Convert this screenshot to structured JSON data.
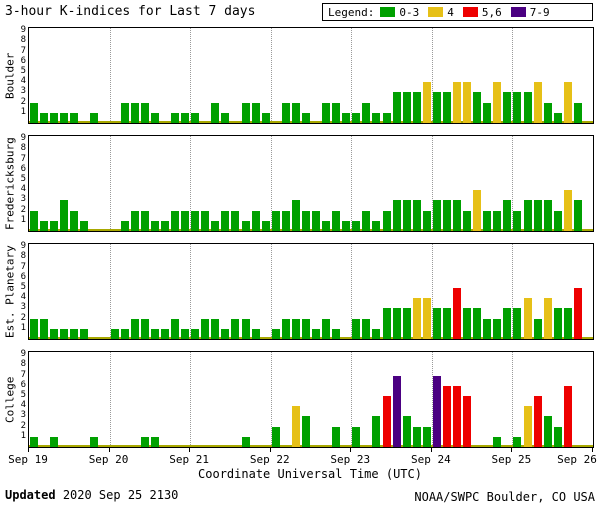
{
  "title": "3-hour K-indices for Last 7 days",
  "legend": {
    "label": "Legend:",
    "items": [
      {
        "label": "0-3",
        "color": "#00a000"
      },
      {
        "label": "4",
        "color": "#e6c017"
      },
      {
        "label": "5,6",
        "color": "#ee0000"
      },
      {
        "label": "7-9",
        "color": "#4b0082"
      }
    ]
  },
  "footer": {
    "updated_label": "Updated",
    "updated_value": "2020 Sep 25 2130",
    "credit": "NOAA/SWPC Boulder, CO USA"
  },
  "chart_data": {
    "type": "bar",
    "title": "3-hour K-indices for Last 7 days",
    "xlabel": "Coordinate Universal Time (UTC)",
    "x_tick_labels": [
      "Sep 19",
      "Sep 20",
      "Sep 21",
      "Sep 22",
      "Sep 23",
      "Sep 24",
      "Sep 25",
      "Sep 26"
    ],
    "y_ticks": [
      1,
      2,
      3,
      4,
      5,
      6,
      7,
      8,
      9
    ],
    "ylim": [
      0,
      9
    ],
    "days": 7,
    "bars_per_day": 8,
    "grid": "vertical-dotted-day-boundaries",
    "legend_position": "top-right",
    "colors": {
      "green": "#00a000",
      "yellow": "#e6c017",
      "red": "#ee0000",
      "purple": "#4b0082",
      "baseline": "#a8a800"
    },
    "color_rule": "0-3 green, 4 yellow, 5-6 red, 7-9 purple",
    "series": [
      {
        "name": "Boulder",
        "values": [
          2,
          1,
          1,
          1,
          1,
          0,
          1,
          0,
          0,
          2,
          2,
          2,
          1,
          0,
          1,
          1,
          1,
          0,
          2,
          1,
          0,
          2,
          2,
          1,
          0,
          2,
          2,
          1,
          0,
          2,
          2,
          1,
          1,
          2,
          1,
          1,
          3,
          3,
          3,
          4,
          3,
          3,
          4,
          4,
          3,
          2,
          4,
          3,
          3,
          3,
          4,
          2,
          1,
          4,
          2
        ]
      },
      {
        "name": "Fredericksburg",
        "values": [
          2,
          1,
          1,
          3,
          2,
          1,
          0,
          0,
          0,
          1,
          2,
          2,
          1,
          1,
          2,
          2,
          2,
          2,
          1,
          2,
          2,
          1,
          2,
          1,
          2,
          2,
          3,
          2,
          2,
          1,
          2,
          1,
          1,
          2,
          1,
          2,
          3,
          3,
          3,
          2,
          3,
          3,
          3,
          2,
          4,
          2,
          2,
          3,
          2,
          3,
          3,
          3,
          2,
          4,
          3
        ]
      },
      {
        "name": "Est. Planetary",
        "values": [
          2,
          2,
          1,
          1,
          1,
          1,
          0,
          0,
          1,
          1,
          2,
          2,
          1,
          1,
          2,
          1,
          1,
          2,
          2,
          1,
          2,
          2,
          1,
          0,
          1,
          2,
          2,
          2,
          1,
          2,
          1,
          0,
          2,
          2,
          1,
          3,
          3,
          3,
          4,
          4,
          3,
          3,
          5,
          3,
          3,
          2,
          2,
          3,
          3,
          4,
          2,
          4,
          3,
          3,
          5
        ]
      },
      {
        "name": "College",
        "values": [
          1,
          0,
          1,
          0,
          0,
          0,
          1,
          0,
          0,
          0,
          0,
          1,
          1,
          0,
          0,
          0,
          0,
          0,
          0,
          0,
          0,
          1,
          0,
          0,
          2,
          0,
          4,
          3,
          0,
          0,
          2,
          0,
          2,
          0,
          3,
          5,
          7,
          3,
          2,
          2,
          7,
          6,
          6,
          5,
          0,
          0,
          1,
          0,
          1,
          4,
          5,
          3,
          2,
          6,
          0
        ]
      }
    ]
  }
}
